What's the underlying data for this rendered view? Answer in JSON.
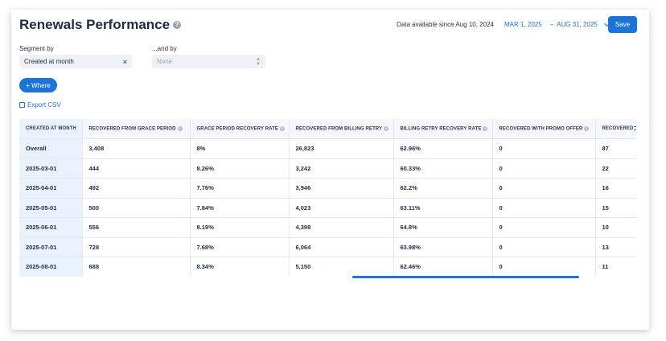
{
  "header": {
    "title": "Renewals Performance",
    "data_available": "Data available since Aug 10, 2024",
    "date_start": "MAR 1, 2025",
    "date_separator": "–",
    "date_end": "AUG 31, 2025",
    "save_label": "Save"
  },
  "filters": {
    "segment_label": "Segment by",
    "segment_value": "Created at month",
    "and_by_label": "...and by",
    "and_by_value": "None",
    "where_label": "+ Where",
    "export_label": "Export CSV"
  },
  "table": {
    "columns": [
      "CREATED AT MONTH",
      "RECOVERED FROM GRACE PERIOD",
      "GRACE PERIOD RECOVERY RATE",
      "RECOVERED FROM BILLING RETRY",
      "BILLING RETRY RECOVERY RATE",
      "RECOVERED WITH PROMO OFFER",
      "RECOVERED"
    ],
    "rows": [
      [
        "Overall",
        "3,408",
        "8%",
        "26,823",
        "62.96%",
        "0",
        "87"
      ],
      [
        "2025-03-01",
        "444",
        "8.26%",
        "3,242",
        "60.33%",
        "0",
        "22"
      ],
      [
        "2025-04-01",
        "492",
        "7.76%",
        "3,946",
        "62.2%",
        "0",
        "16"
      ],
      [
        "2025-05-01",
        "500",
        "7.84%",
        "4,023",
        "63.11%",
        "0",
        "15"
      ],
      [
        "2025-06-01",
        "556",
        "8.19%",
        "4,398",
        "64.8%",
        "0",
        "10"
      ],
      [
        "2025-07-01",
        "728",
        "7.68%",
        "6,064",
        "63.98%",
        "0",
        "13"
      ],
      [
        "2025-08-01",
        "688",
        "8.34%",
        "5,150",
        "62.46%",
        "0",
        "11"
      ]
    ]
  },
  "icons": {
    "help": "question-circle-icon",
    "info": "info-circle-icon",
    "clear": "x-icon",
    "export": "external-link-icon",
    "column_menu": "menu-lines-icon"
  },
  "colors": {
    "accent": "#1d74d8",
    "text": "#1f2a44",
    "first_column_bg": "#eaf3fd"
  }
}
